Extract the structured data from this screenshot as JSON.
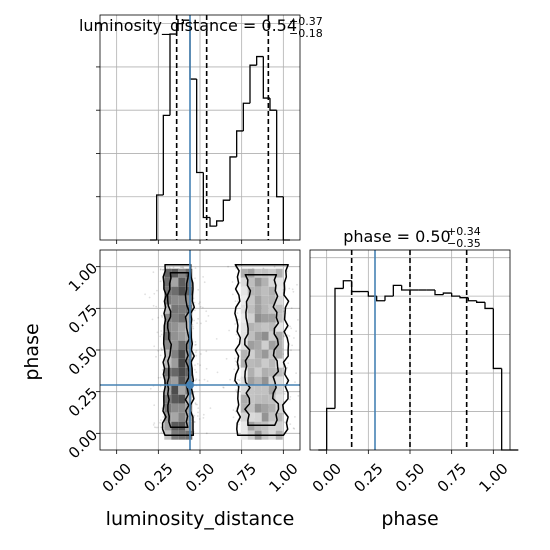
{
  "chart_data": {
    "type": "corner",
    "panels": [
      {
        "id": "hist-luminosity-distance",
        "type": "histogram-step",
        "title": {
          "prefix": "luminosity_distance = ",
          "value": "0.54",
          "plus": "+0.37",
          "minus": "−0.18"
        },
        "xlim": [
          -0.1,
          1.1
        ],
        "bin_start": 0.2,
        "bin_width": 0.04,
        "counts": [
          0,
          26,
          72,
          119,
          125,
          127,
          93,
          39,
          13,
          8,
          11,
          23,
          48,
          63,
          79,
          101,
          106,
          82,
          75,
          25,
          0
        ],
        "quantiles": [
          0.36,
          0.54,
          0.91
        ],
        "truth": 0.44,
        "x_ticks": [
          0.0,
          0.25,
          0.5,
          0.75,
          1.0
        ],
        "y_ticks": [
          0,
          25,
          50,
          75,
          100,
          125
        ]
      },
      {
        "id": "2d-luminosity-distance-phase",
        "type": "2d-density-contour",
        "xlim": [
          -0.1,
          1.1
        ],
        "ylim": [
          -0.1,
          1.1
        ],
        "xlabel": "luminosity_distance",
        "ylabel": "phase",
        "x_ticks": [
          "0.00",
          "0.25",
          "0.50",
          "0.75",
          "1.00"
        ],
        "y_ticks": [
          "0.00",
          "0.25",
          "0.50",
          "0.75",
          "1.00"
        ],
        "clusters": [
          {
            "x_center": 0.37,
            "x_halfwidth": 0.07,
            "y_range": [
              0.0,
              1.0
            ]
          },
          {
            "x_center": 0.87,
            "x_halfwidth": 0.1,
            "y_range": [
              0.0,
              1.0
            ]
          }
        ],
        "truth": [
          0.44,
          0.29
        ]
      },
      {
        "id": "hist-phase",
        "type": "histogram-step",
        "title": {
          "prefix": "phase = ",
          "value": "0.50",
          "plus": "+0.34",
          "minus": "−0.35"
        },
        "xlim": [
          -0.1,
          1.1
        ],
        "bin_start": -0.05,
        "bin_width": 0.05,
        "counts": [
          0,
          27,
          105,
          110,
          103,
          103,
          100,
          97,
          100,
          107,
          104,
          104,
          104,
          104,
          101,
          102,
          100,
          99,
          97,
          96,
          92,
          53,
          0,
          0
        ],
        "ylim": [
          0,
          130
        ],
        "quantiles": [
          0.15,
          0.5,
          0.84
        ],
        "truth": 0.29,
        "xlabel": "phase",
        "x_ticks": [
          "0.00",
          "0.25",
          "0.50",
          "0.75",
          "1.00"
        ]
      }
    ],
    "colors": {
      "truth": "#4682b4",
      "hist": "#000000",
      "grid": "#b0b0b0"
    },
    "grid": true
  }
}
